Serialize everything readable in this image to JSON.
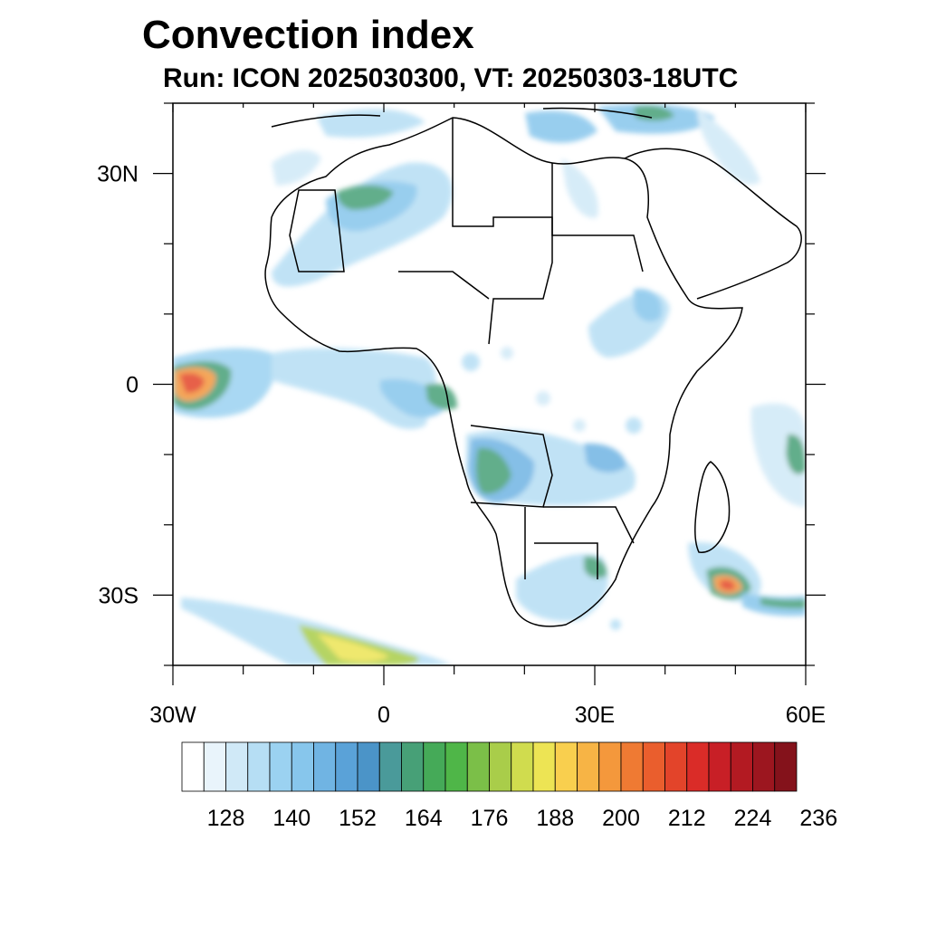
{
  "title": "Convection index",
  "subtitle": "Run: ICON 2025030300,  VT: 20250303-18UTC",
  "axes": {
    "lon_labels": [
      "30W",
      "0",
      "30E",
      "60E"
    ],
    "lat_labels": [
      "30N",
      "0",
      "30S"
    ],
    "lon_range": [
      -30,
      60
    ],
    "lat_range": [
      -40,
      40
    ],
    "lon_label_values": [
      -30,
      0,
      30,
      60
    ],
    "lat_label_values": [
      30,
      0,
      -30
    ]
  },
  "colorbar": {
    "labels": [
      "128",
      "140",
      "152",
      "164",
      "176",
      "188",
      "200",
      "212",
      "224",
      "236"
    ],
    "colors": [
      "#ffffff",
      "#e9f4fb",
      "#d0e9f7",
      "#b6def4",
      "#9bd2f1",
      "#87c6ec",
      "#70b4e3",
      "#5aa2d8",
      "#4b94c8",
      "#4a9a9a",
      "#47a077",
      "#45aa58",
      "#4fb648",
      "#7bbf48",
      "#a9cd4a",
      "#d0dc4e",
      "#ede454",
      "#f9cf4e",
      "#f7b445",
      "#f4983c",
      "#ef7a33",
      "#ea5e2d",
      "#e3442a",
      "#da2c28",
      "#c81f26",
      "#b31a22",
      "#9c161f",
      "#84121b"
    ]
  },
  "regions": [
    {
      "name": "gulf-guinea-patch",
      "color": "#7db9e6"
    },
    {
      "name": "west-atlantic-hotspot",
      "color": "#f39a3c"
    },
    {
      "name": "southern-africa-patch",
      "color": "#87c6ec"
    },
    {
      "name": "mozambique-channel-cyclone",
      "color": "#e3442a"
    },
    {
      "name": "south-atlantic-band",
      "color": "#a9cd4a"
    },
    {
      "name": "sahara-band",
      "color": "#5aa2d8"
    },
    {
      "name": "mediterranean-band",
      "color": "#87c6ec"
    }
  ]
}
